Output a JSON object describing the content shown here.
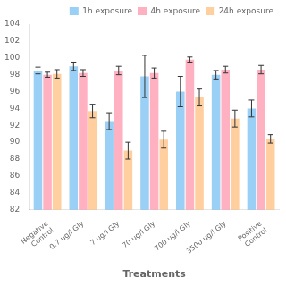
{
  "chart_data": {
    "type": "bar",
    "xlabel": "Treatments",
    "categories": [
      "Negative\nControl",
      "0.7 ug/l Gly",
      "7 ug/l Gly",
      "70 ug/l Gly",
      "700 ug/l Gly",
      "3500 ug/l Gly",
      "Positive\nControl"
    ],
    "series": [
      {
        "name": "1h exposure",
        "values": [
          98.5,
          99.0,
          92.5,
          97.8,
          96.0,
          98.0,
          94.0
        ],
        "errors": [
          0.4,
          0.5,
          1.0,
          2.5,
          1.8,
          0.5,
          1.0
        ]
      },
      {
        "name": "4h exposure",
        "values": [
          98.0,
          98.2,
          98.5,
          98.2,
          99.8,
          98.6,
          98.6
        ],
        "errors": [
          0.3,
          0.4,
          0.5,
          0.6,
          0.3,
          0.4,
          0.5
        ]
      },
      {
        "name": "24h exposure",
        "values": [
          98.1,
          93.7,
          89.0,
          90.3,
          95.3,
          92.8,
          90.4
        ],
        "errors": [
          0.5,
          0.8,
          1.0,
          1.0,
          1.0,
          1.0,
          0.5
        ]
      }
    ],
    "ylim": [
      82,
      104
    ],
    "yticks": [
      82,
      84,
      86,
      88,
      90,
      92,
      94,
      96,
      98,
      100,
      102,
      104
    ],
    "grid": false,
    "legend": "upper right"
  }
}
